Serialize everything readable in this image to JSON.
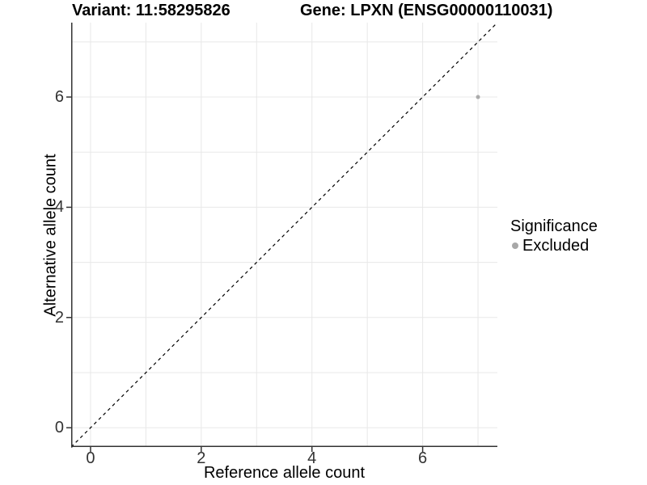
{
  "title": {
    "left": "Variant: 11:58295826",
    "right": "Gene: LPXN (ENSG00000110031)"
  },
  "chart_data": {
    "type": "scatter",
    "title": "Variant: 11:58295826   Gene: LPXN (ENSG00000110031)",
    "xlabel": "Reference allele count",
    "ylabel": "Alternative allele count",
    "xlim": [
      -0.35,
      7.35
    ],
    "ylim": [
      -0.35,
      7.35
    ],
    "x_major_ticks": [
      0,
      2,
      4,
      6
    ],
    "x_minor_ticks": [
      1,
      3,
      5,
      7
    ],
    "y_major_ticks": [
      0,
      2,
      4,
      6
    ],
    "y_minor_ticks": [
      1,
      3,
      5,
      7
    ],
    "grid": true,
    "points": [
      {
        "x": 7,
        "y": 6,
        "significance": "Excluded"
      }
    ],
    "identity_line": {
      "slope": 1,
      "intercept": 0,
      "style": "dashed",
      "color": "#000000"
    },
    "colors": {
      "point": "#ababab",
      "grid": "#e8e8e8",
      "axis": "#333333"
    },
    "point_radius": 2.5,
    "legend": {
      "title": "Significance",
      "position": "right",
      "entries": [
        {
          "label": "Excluded",
          "color": "#a8a8a8"
        }
      ]
    }
  }
}
